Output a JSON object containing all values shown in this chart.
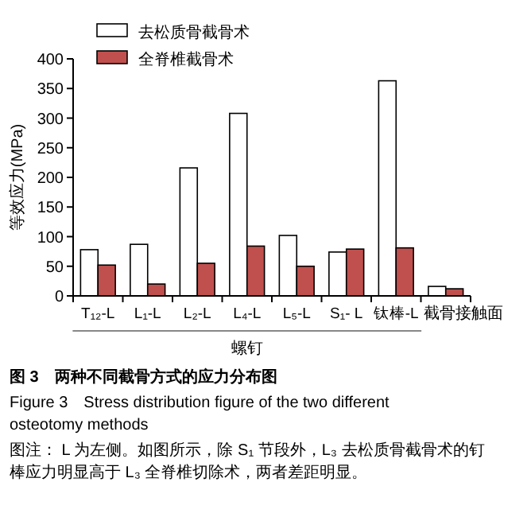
{
  "chart_data": {
    "type": "bar",
    "ylabel": "等效应力(MPa)",
    "xlabel": "螺钉",
    "categories": [
      "T₁₂-L",
      "L₁-L",
      "L₂-L",
      "L₄-L",
      "L₅-L",
      "S₁- L",
      "钛棒-L",
      "截骨接触面"
    ],
    "series": [
      {
        "name": "去松质骨截骨术",
        "color": "#ffffff",
        "values": [
          78,
          87,
          216,
          308,
          102,
          74,
          363,
          16
        ]
      },
      {
        "name": "全脊椎截骨术",
        "color": "#c0504d",
        "values": [
          52,
          20,
          55,
          84,
          50,
          79,
          81,
          12
        ]
      }
    ],
    "ylim": [
      0,
      400
    ],
    "yticks": [
      0,
      50,
      100,
      150,
      200,
      250,
      300,
      350,
      400
    ],
    "grid": false,
    "legend": "top left",
    "annotations": [
      "图 3　两种不同截骨方式的应力分布图",
      "Figure 3　Stress distribution figure of the two different osteotomy methods",
      "图注： L 为左侧。如图所示，除 S₁ 节段外，L₃ 去松质骨截骨术的钉棒应力明显高于 L₃ 全脊椎切除术，两者差距明显。"
    ]
  }
}
